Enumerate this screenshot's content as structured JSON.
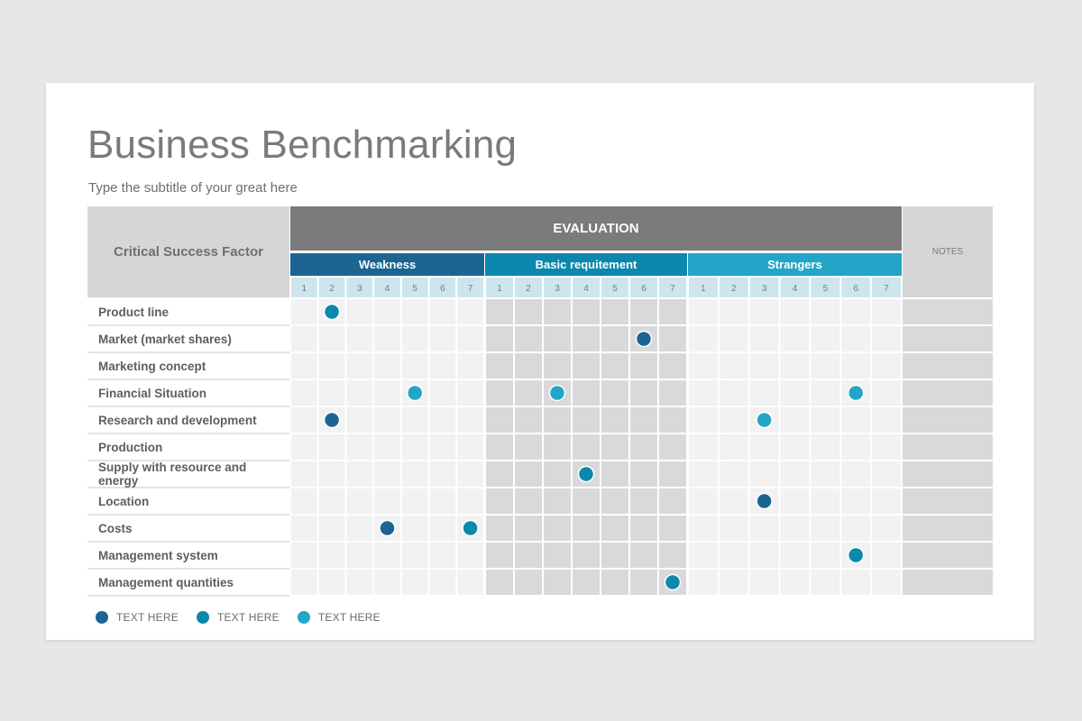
{
  "title": "Business Benchmarking",
  "subtitle": "Type the subtitle of your great here",
  "header": {
    "critical_success_factor": "Critical Success Factor",
    "evaluation": "EVALUATION",
    "notes": "NOTES"
  },
  "groups": [
    {
      "label": "Weakness",
      "color": "#1c6592"
    },
    {
      "label": "Basic requitement",
      "color": "#0c87ad"
    },
    {
      "label": "Strangers",
      "color": "#23a5c7"
    }
  ],
  "scale": [
    "1",
    "2",
    "3",
    "4",
    "5",
    "6",
    "7"
  ],
  "rows": [
    "Product line",
    "Market (market shares)",
    "Marketing concept",
    "Financial Situation",
    "Research and development",
    "Production",
    "Supply with resource and energy",
    "Location",
    "Costs",
    "Management system",
    "Management quantities"
  ],
  "points": [
    {
      "row": 0,
      "group": 0,
      "score": 2,
      "series": 1
    },
    {
      "row": 1,
      "group": 1,
      "score": 6,
      "series": 0
    },
    {
      "row": 3,
      "group": 0,
      "score": 5,
      "series": 2
    },
    {
      "row": 3,
      "group": 1,
      "score": 3,
      "series": 2
    },
    {
      "row": 3,
      "group": 2,
      "score": 6,
      "series": 2
    },
    {
      "row": 4,
      "group": 0,
      "score": 2,
      "series": 0
    },
    {
      "row": 4,
      "group": 2,
      "score": 3,
      "series": 2
    },
    {
      "row": 6,
      "group": 1,
      "score": 4,
      "series": 1
    },
    {
      "row": 7,
      "group": 2,
      "score": 3,
      "series": 0
    },
    {
      "row": 8,
      "group": 0,
      "score": 4,
      "series": 0
    },
    {
      "row": 8,
      "group": 0,
      "score": 7,
      "series": 1
    },
    {
      "row": 9,
      "group": 2,
      "score": 6,
      "series": 1
    },
    {
      "row": 10,
      "group": 1,
      "score": 7,
      "series": 1
    }
  ],
  "legend": [
    {
      "label": "TEXT HERE",
      "color": "#1c6592"
    },
    {
      "label": "TEXT HERE",
      "color": "#0c87ad"
    },
    {
      "label": "TEXT HERE",
      "color": "#23a5c7"
    }
  ]
}
